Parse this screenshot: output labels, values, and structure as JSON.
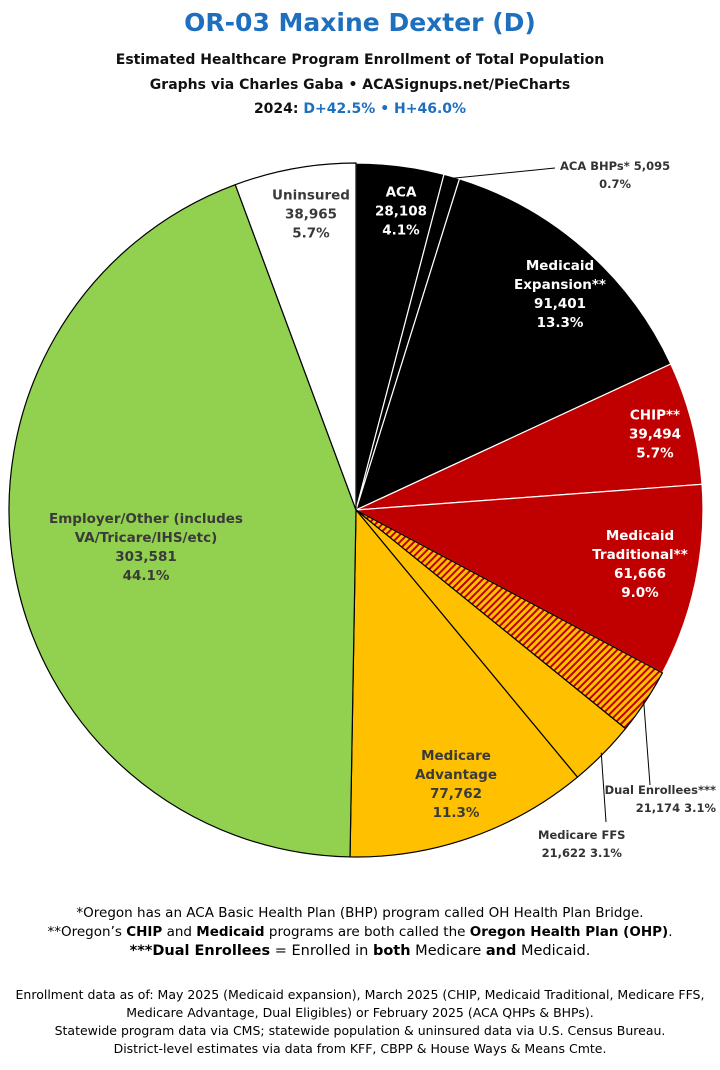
{
  "header": {
    "title": "OR-03 Maxine Dexter (D)",
    "subtitle": "Estimated Healthcare Program Enrollment of Total Population",
    "credit": "Graphs via Charles Gaba • ACASignups.net/PieCharts",
    "year": "2024:",
    "d_margin": "D+42.5%",
    "separator": "•",
    "h_margin": "H+46.0%"
  },
  "chart_data": {
    "type": "pie",
    "categories": [
      "ACA",
      "ACA BHPs*",
      "Medicaid Expansion**",
      "CHIP**",
      "Medicaid Traditional**",
      "Dual Enrollees***",
      "Medicare FFS",
      "Medicare Advantage",
      "Employer/Other (includes VA/Tricare/IHS/etc)",
      "Uninsured"
    ],
    "values": [
      28108,
      5095,
      91401,
      39494,
      61666,
      21174,
      21622,
      77762,
      303581,
      38965
    ],
    "value_labels": [
      "28,108",
      "5,095",
      "91,401",
      "39,494",
      "61,666",
      "21,174",
      "21,622",
      "77,762",
      "303,581",
      "38,965"
    ],
    "percents": [
      4.1,
      0.7,
      13.3,
      5.7,
      9.0,
      3.1,
      3.1,
      11.3,
      44.1,
      5.7
    ],
    "percent_labels": [
      "4.1%",
      "0.7%",
      "13.3%",
      "5.7%",
      "9.0%",
      "3.1%",
      "3.1%",
      "11.3%",
      "44.1%",
      "5.7%"
    ],
    "colors": [
      "#000000",
      "#000000",
      "#000000",
      "#c00000",
      "#c00000",
      "#ffc000",
      "#ffc000",
      "#ffc000",
      "#92d050",
      "#ffffff"
    ],
    "hatched": [
      false,
      false,
      false,
      false,
      false,
      true,
      false,
      false,
      false,
      false
    ],
    "hatch_color": "#c00000"
  },
  "notes": [
    [
      "*Oregon has an ACA Basic Health Plan (BHP) program called OH Health Plan Bridge."
    ],
    [
      "**Oregon’s ",
      "CHIP",
      " and ",
      "Medicaid",
      " programs are both called the ",
      "Oregon Health Plan (OHP)",
      "."
    ],
    [
      "***Dual Enrollees",
      " = Enrolled in ",
      "both",
      " Medicare ",
      "and",
      " Medicaid."
    ]
  ],
  "sources": [
    "Enrollment data as of: May 2025 (Medicaid expansion), March 2025 (CHIP, Medicaid Traditional, Medicare FFS, Medicare Advantage, Dual Eligibles) or February 2025 (ACA QHPs & BHPs).",
    "Statewide program data via CMS; statewide population & uninsured data via U.S. Census Bureau.",
    "District-level estimates via data from KFF, CBPP & House Ways & Means Cmte."
  ]
}
